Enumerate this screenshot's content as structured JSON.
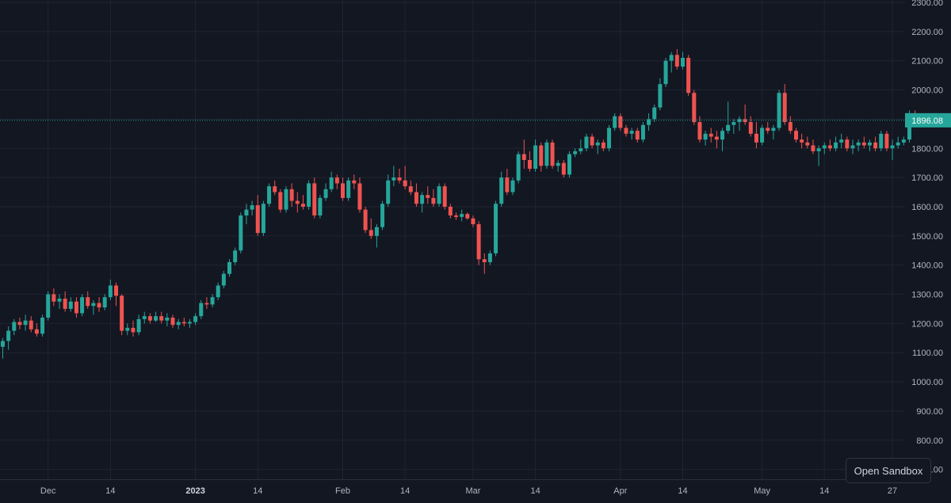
{
  "sandbox_button": {
    "label": "Open Sandbox"
  },
  "colors": {
    "background": "#131722",
    "grid": "#1f2433",
    "text": "#b2b5be",
    "up": "#26a69a",
    "down": "#ef5350",
    "price_line": "#26a69a"
  },
  "chart_data": {
    "type": "candlestick",
    "title": "",
    "xlabel": "",
    "ylabel": "",
    "ylim": [
      700,
      2300
    ],
    "y_ticks": [
      2300,
      2200,
      2100,
      2000,
      1900,
      1800,
      1700,
      1600,
      1500,
      1400,
      1300,
      1200,
      1100,
      1000,
      900,
      800,
      700
    ],
    "y_tick_labels": [
      "2300.00",
      "2200.00",
      "2100.00",
      "2000.00",
      "1900.00",
      "1800.00",
      "1700.00",
      "1600.00",
      "1500.00",
      "1400.00",
      "1300.00",
      "1200.00",
      "1100.00",
      "1000.00",
      "900.00",
      "800.00",
      "700.00"
    ],
    "x_ticks": [
      {
        "index": 8,
        "label": "Dec"
      },
      {
        "index": 19,
        "label": "14"
      },
      {
        "index": 34,
        "label": "2023"
      },
      {
        "index": 45,
        "label": "14"
      },
      {
        "index": 60,
        "label": "Feb"
      },
      {
        "index": 71,
        "label": "14"
      },
      {
        "index": 83,
        "label": "Mar"
      },
      {
        "index": 94,
        "label": "14"
      },
      {
        "index": 109,
        "label": "Apr"
      },
      {
        "index": 120,
        "label": "14"
      },
      {
        "index": 134,
        "label": "May"
      },
      {
        "index": 145,
        "label": "14"
      },
      {
        "index": 157,
        "label": "27"
      }
    ],
    "grid": true,
    "last_price": 1896.08,
    "last_price_label": "1896.08",
    "ohlc": [
      [
        1120,
        1150,
        1080,
        1140
      ],
      [
        1140,
        1190,
        1110,
        1175
      ],
      [
        1175,
        1215,
        1160,
        1205
      ],
      [
        1205,
        1220,
        1180,
        1195
      ],
      [
        1195,
        1230,
        1175,
        1210
      ],
      [
        1210,
        1225,
        1170,
        1180
      ],
      [
        1180,
        1200,
        1155,
        1165
      ],
      [
        1165,
        1230,
        1155,
        1220
      ],
      [
        1220,
        1310,
        1210,
        1300
      ],
      [
        1300,
        1320,
        1260,
        1275
      ],
      [
        1275,
        1300,
        1250,
        1285
      ],
      [
        1285,
        1310,
        1240,
        1250
      ],
      [
        1250,
        1290,
        1240,
        1275
      ],
      [
        1275,
        1290,
        1220,
        1235
      ],
      [
        1235,
        1300,
        1225,
        1290
      ],
      [
        1290,
        1310,
        1250,
        1260
      ],
      [
        1260,
        1280,
        1230,
        1270
      ],
      [
        1270,
        1290,
        1240,
        1255
      ],
      [
        1255,
        1300,
        1245,
        1290
      ],
      [
        1290,
        1350,
        1280,
        1330
      ],
      [
        1330,
        1340,
        1260,
        1295
      ],
      [
        1295,
        1300,
        1160,
        1175
      ],
      [
        1175,
        1200,
        1160,
        1185
      ],
      [
        1185,
        1210,
        1155,
        1170
      ],
      [
        1170,
        1230,
        1160,
        1215
      ],
      [
        1215,
        1240,
        1200,
        1225
      ],
      [
        1225,
        1235,
        1200,
        1210
      ],
      [
        1210,
        1240,
        1205,
        1225
      ],
      [
        1225,
        1240,
        1200,
        1210
      ],
      [
        1210,
        1235,
        1190,
        1220
      ],
      [
        1220,
        1230,
        1185,
        1195
      ],
      [
        1195,
        1215,
        1180,
        1205
      ],
      [
        1205,
        1220,
        1190,
        1200
      ],
      [
        1200,
        1215,
        1185,
        1205
      ],
      [
        1205,
        1235,
        1195,
        1225
      ],
      [
        1225,
        1280,
        1215,
        1270
      ],
      [
        1270,
        1290,
        1250,
        1265
      ],
      [
        1265,
        1300,
        1255,
        1290
      ],
      [
        1290,
        1340,
        1280,
        1330
      ],
      [
        1330,
        1380,
        1320,
        1370
      ],
      [
        1370,
        1420,
        1360,
        1410
      ],
      [
        1410,
        1460,
        1400,
        1450
      ],
      [
        1450,
        1580,
        1440,
        1570
      ],
      [
        1570,
        1610,
        1540,
        1590
      ],
      [
        1590,
        1620,
        1570,
        1605
      ],
      [
        1605,
        1640,
        1500,
        1510
      ],
      [
        1510,
        1620,
        1500,
        1610
      ],
      [
        1610,
        1680,
        1600,
        1670
      ],
      [
        1670,
        1690,
        1640,
        1650
      ],
      [
        1650,
        1660,
        1580,
        1590
      ],
      [
        1590,
        1670,
        1580,
        1660
      ],
      [
        1660,
        1680,
        1600,
        1620
      ],
      [
        1620,
        1650,
        1580,
        1610
      ],
      [
        1610,
        1640,
        1590,
        1600
      ],
      [
        1600,
        1690,
        1590,
        1680
      ],
      [
        1680,
        1700,
        1560,
        1570
      ],
      [
        1570,
        1640,
        1560,
        1630
      ],
      [
        1630,
        1680,
        1620,
        1660
      ],
      [
        1660,
        1720,
        1650,
        1700
      ],
      [
        1700,
        1710,
        1660,
        1680
      ],
      [
        1680,
        1700,
        1620,
        1630
      ],
      [
        1630,
        1700,
        1620,
        1690
      ],
      [
        1690,
        1710,
        1660,
        1680
      ],
      [
        1680,
        1700,
        1580,
        1590
      ],
      [
        1590,
        1600,
        1510,
        1520
      ],
      [
        1520,
        1560,
        1490,
        1500
      ],
      [
        1500,
        1540,
        1460,
        1530
      ],
      [
        1530,
        1620,
        1520,
        1610
      ],
      [
        1610,
        1710,
        1600,
        1690
      ],
      [
        1690,
        1740,
        1670,
        1700
      ],
      [
        1700,
        1730,
        1680,
        1690
      ],
      [
        1690,
        1740,
        1660,
        1670
      ],
      [
        1670,
        1690,
        1640,
        1650
      ],
      [
        1650,
        1680,
        1600,
        1610
      ],
      [
        1610,
        1650,
        1580,
        1640
      ],
      [
        1640,
        1670,
        1610,
        1630
      ],
      [
        1630,
        1660,
        1600,
        1610
      ],
      [
        1610,
        1680,
        1600,
        1670
      ],
      [
        1670,
        1680,
        1590,
        1600
      ],
      [
        1600,
        1610,
        1560,
        1570
      ],
      [
        1570,
        1580,
        1555,
        1565
      ],
      [
        1565,
        1590,
        1550,
        1575
      ],
      [
        1575,
        1580,
        1555,
        1560
      ],
      [
        1560,
        1570,
        1530,
        1540
      ],
      [
        1540,
        1550,
        1400,
        1420
      ],
      [
        1420,
        1440,
        1370,
        1410
      ],
      [
        1410,
        1450,
        1400,
        1440
      ],
      [
        1440,
        1620,
        1430,
        1610
      ],
      [
        1610,
        1720,
        1600,
        1700
      ],
      [
        1700,
        1730,
        1640,
        1650
      ],
      [
        1650,
        1700,
        1640,
        1690
      ],
      [
        1690,
        1790,
        1680,
        1780
      ],
      [
        1780,
        1830,
        1730,
        1760
      ],
      [
        1760,
        1790,
        1720,
        1730
      ],
      [
        1730,
        1830,
        1720,
        1810
      ],
      [
        1810,
        1820,
        1720,
        1740
      ],
      [
        1740,
        1830,
        1730,
        1820
      ],
      [
        1820,
        1830,
        1730,
        1740
      ],
      [
        1740,
        1760,
        1720,
        1750
      ],
      [
        1750,
        1760,
        1700,
        1710
      ],
      [
        1710,
        1790,
        1700,
        1780
      ],
      [
        1780,
        1800,
        1770,
        1790
      ],
      [
        1790,
        1830,
        1780,
        1800
      ],
      [
        1800,
        1850,
        1790,
        1840
      ],
      [
        1840,
        1850,
        1800,
        1810
      ],
      [
        1810,
        1830,
        1780,
        1820
      ],
      [
        1820,
        1830,
        1790,
        1800
      ],
      [
        1800,
        1880,
        1790,
        1870
      ],
      [
        1870,
        1920,
        1860,
        1910
      ],
      [
        1910,
        1920,
        1860,
        1870
      ],
      [
        1870,
        1880,
        1840,
        1850
      ],
      [
        1850,
        1870,
        1830,
        1860
      ],
      [
        1860,
        1870,
        1820,
        1830
      ],
      [
        1830,
        1890,
        1820,
        1880
      ],
      [
        1880,
        1920,
        1860,
        1900
      ],
      [
        1900,
        1950,
        1890,
        1940
      ],
      [
        1940,
        2040,
        1930,
        2020
      ],
      [
        2020,
        2110,
        2010,
        2100
      ],
      [
        2100,
        2130,
        2060,
        2120
      ],
      [
        2120,
        2140,
        2070,
        2080
      ],
      [
        2080,
        2130,
        2070,
        2110
      ],
      [
        2110,
        2120,
        1980,
        1990
      ],
      [
        1990,
        2000,
        1880,
        1890
      ],
      [
        1890,
        1910,
        1820,
        1830
      ],
      [
        1830,
        1860,
        1810,
        1850
      ],
      [
        1850,
        1870,
        1820,
        1840
      ],
      [
        1840,
        1860,
        1800,
        1830
      ],
      [
        1830,
        1870,
        1790,
        1860
      ],
      [
        1860,
        1960,
        1850,
        1880
      ],
      [
        1880,
        1900,
        1850,
        1890
      ],
      [
        1890,
        1910,
        1860,
        1900
      ],
      [
        1900,
        1950,
        1880,
        1890
      ],
      [
        1890,
        1910,
        1840,
        1850
      ],
      [
        1850,
        1890,
        1800,
        1820
      ],
      [
        1820,
        1880,
        1810,
        1870
      ],
      [
        1870,
        1890,
        1850,
        1860
      ],
      [
        1860,
        1880,
        1830,
        1870
      ],
      [
        1870,
        2000,
        1860,
        1990
      ],
      [
        1990,
        2020,
        1880,
        1890
      ],
      [
        1890,
        1910,
        1850,
        1860
      ],
      [
        1860,
        1870,
        1820,
        1830
      ],
      [
        1830,
        1850,
        1800,
        1820
      ],
      [
        1820,
        1840,
        1800,
        1810
      ],
      [
        1810,
        1830,
        1780,
        1790
      ],
      [
        1790,
        1810,
        1740,
        1800
      ],
      [
        1800,
        1820,
        1780,
        1810
      ],
      [
        1810,
        1830,
        1790,
        1800
      ],
      [
        1800,
        1840,
        1790,
        1820
      ],
      [
        1820,
        1850,
        1800,
        1830
      ],
      [
        1830,
        1840,
        1790,
        1800
      ],
      [
        1800,
        1830,
        1780,
        1810
      ],
      [
        1810,
        1830,
        1790,
        1820
      ],
      [
        1820,
        1840,
        1800,
        1810
      ],
      [
        1810,
        1830,
        1790,
        1820
      ],
      [
        1820,
        1840,
        1790,
        1800
      ],
      [
        1800,
        1860,
        1790,
        1850
      ],
      [
        1850,
        1860,
        1790,
        1800
      ],
      [
        1800,
        1830,
        1760,
        1810
      ],
      [
        1810,
        1840,
        1800,
        1820
      ],
      [
        1820,
        1840,
        1810,
        1830
      ],
      [
        1830,
        1930,
        1820,
        1910
      ],
      [
        1910,
        1930,
        1880,
        1890
      ],
      [
        1890,
        1910,
        1880,
        1896.08
      ]
    ]
  }
}
